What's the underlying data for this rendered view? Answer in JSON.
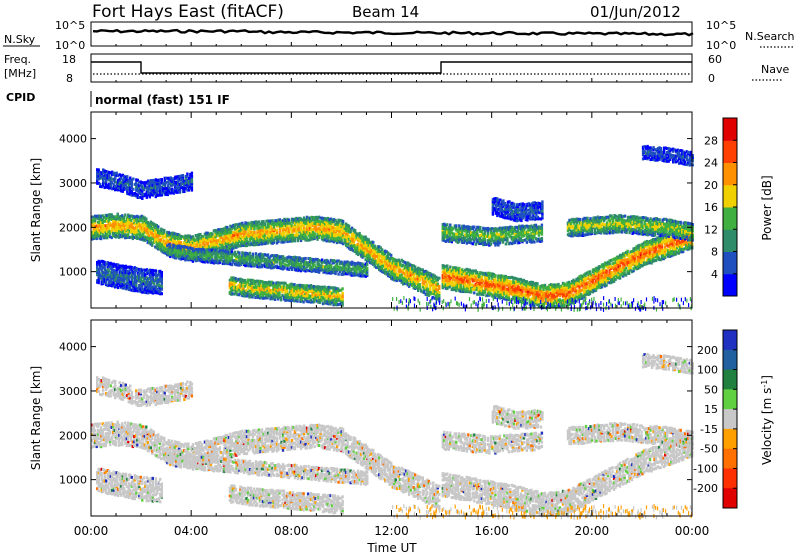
{
  "header": {
    "title": "Fort Hays East (fitACF)",
    "beam": "Beam 14",
    "date": "01/Jun/2012"
  },
  "top_panels": {
    "nsky_label": "N.Sky",
    "nsky_ticks": [
      "10^5",
      "10^0"
    ],
    "nsearch_label": "N.Search",
    "nsearch_ticks": [
      "10^5",
      "10^0"
    ],
    "freq_label_line1": "Freq.",
    "freq_label_line2": "[MHz]",
    "freq_ticks": [
      "18",
      "8"
    ],
    "nave_label": "Nave",
    "nave_ticks": [
      "60",
      "0"
    ],
    "cpid_label": "CPID",
    "mode_text": "normal (fast) 151 IF"
  },
  "colors": {
    "power": [
      "#0000ff",
      "#2050c0",
      "#2f8c6a",
      "#3fb040",
      "#f0d000",
      "#ff9000",
      "#ff4000",
      "#e00000"
    ],
    "velocity": [
      "#2030c0",
      "#2060a0",
      "#208040",
      "#60d040",
      "#c8c8c8",
      "#ffa000",
      "#ff7000",
      "#ff3000",
      "#e00000"
    ]
  },
  "chart_data": [
    {
      "type": "heatmap",
      "name": "power",
      "xlabel": "Time UT",
      "ylabel": "Slant Range [km]",
      "x_ticks": [
        "00:00",
        "04:00",
        "08:00",
        "12:00",
        "16:00",
        "20:00",
        "00:00"
      ],
      "xlim_hours": [
        0,
        24
      ],
      "y_ticks": [
        1000,
        2000,
        3000,
        4000
      ],
      "ylim_km": [
        180,
        4600
      ],
      "colorbar_label": "Power [dB]",
      "colorbar_ticks": [
        4,
        8,
        12,
        16,
        20,
        24,
        28
      ],
      "colorbar_range": [
        0,
        32
      ],
      "bands": [
        {
          "t": [
            0.0,
            1.0,
            2.0,
            3.0,
            4.0,
            5.0,
            6.0,
            7.0,
            8.0,
            9.0,
            10.0,
            11.0,
            12.0,
            13.0,
            13.9
          ],
          "r": [
            2000,
            2050,
            2000,
            1650,
            1550,
            1700,
            1850,
            1900,
            1950,
            2000,
            1900,
            1500,
            1100,
            850,
            600
          ],
          "w": 260,
          "p": 22
        },
        {
          "t": [
            3.0,
            4.0,
            5.0,
            6.0,
            7.0,
            8.0,
            9.0,
            10.0,
            11.0
          ],
          "r": [
            1500,
            1400,
            1350,
            1300,
            1250,
            1200,
            1150,
            1100,
            1050
          ],
          "w": 150,
          "p": 14
        },
        {
          "t": [
            5.5,
            6.0,
            7.0,
            8.0,
            9.0,
            10.0
          ],
          "r": [
            700,
            650,
            600,
            550,
            500,
            450
          ],
          "w": 200,
          "p": 20
        },
        {
          "t": [
            14.0,
            15.0,
            16.0,
            17.0,
            18.0,
            19.0,
            20.0,
            21.0,
            22.0,
            23.0,
            24.0
          ],
          "r": [
            900,
            800,
            700,
            600,
            450,
            500,
            800,
            1100,
            1400,
            1600,
            1800
          ],
          "w": 260,
          "p": 26
        },
        {
          "t": [
            14.0,
            15.0,
            16.0,
            17.0,
            18.0
          ],
          "r": [
            1900,
            1850,
            1800,
            1850,
            1900
          ],
          "w": 200,
          "p": 16
        },
        {
          "t": [
            19.0,
            20.0,
            21.0,
            22.0,
            23.0,
            24.0
          ],
          "r": [
            2000,
            2050,
            2100,
            2050,
            2000,
            1900
          ],
          "w": 200,
          "p": 18
        },
        {
          "t": [
            0.2,
            1.0,
            2.0,
            3.0,
            4.0
          ],
          "r": [
            3150,
            3050,
            2850,
            2950,
            3050
          ],
          "w": 200,
          "p": 7
        },
        {
          "t": [
            0.2,
            1.0,
            2.0,
            2.8
          ],
          "r": [
            1000,
            900,
            800,
            750
          ],
          "w": 250,
          "p": 8
        },
        {
          "t": [
            16.0,
            17.0,
            18.0
          ],
          "r": [
            2500,
            2350,
            2400
          ],
          "w": 200,
          "p": 7
        },
        {
          "t": [
            22.0,
            23.0,
            24.0
          ],
          "r": [
            3700,
            3650,
            3550
          ],
          "w": 150,
          "p": 6
        }
      ],
      "noise_floor": {
        "t": [
          12.0,
          24.0
        ],
        "r": [
          180,
          450
        ]
      }
    },
    {
      "type": "heatmap",
      "name": "velocity",
      "xlabel": "Time UT",
      "ylabel": "Slant Range [km]",
      "x_ticks": [
        "00:00",
        "04:00",
        "08:00",
        "12:00",
        "16:00",
        "20:00",
        "00:00"
      ],
      "xlim_hours": [
        0,
        24
      ],
      "y_ticks": [
        1000,
        2000,
        3000,
        4000
      ],
      "ylim_km": [
        180,
        4600
      ],
      "colorbar_label": "Velocity [m s^-1]",
      "colorbar_ticks": [
        200,
        100,
        50,
        15,
        -15,
        -50,
        -100,
        -200
      ],
      "bands_note": "same echo regions as power panel; mostly ground scatter (-15 to 15 m/s)"
    }
  ]
}
